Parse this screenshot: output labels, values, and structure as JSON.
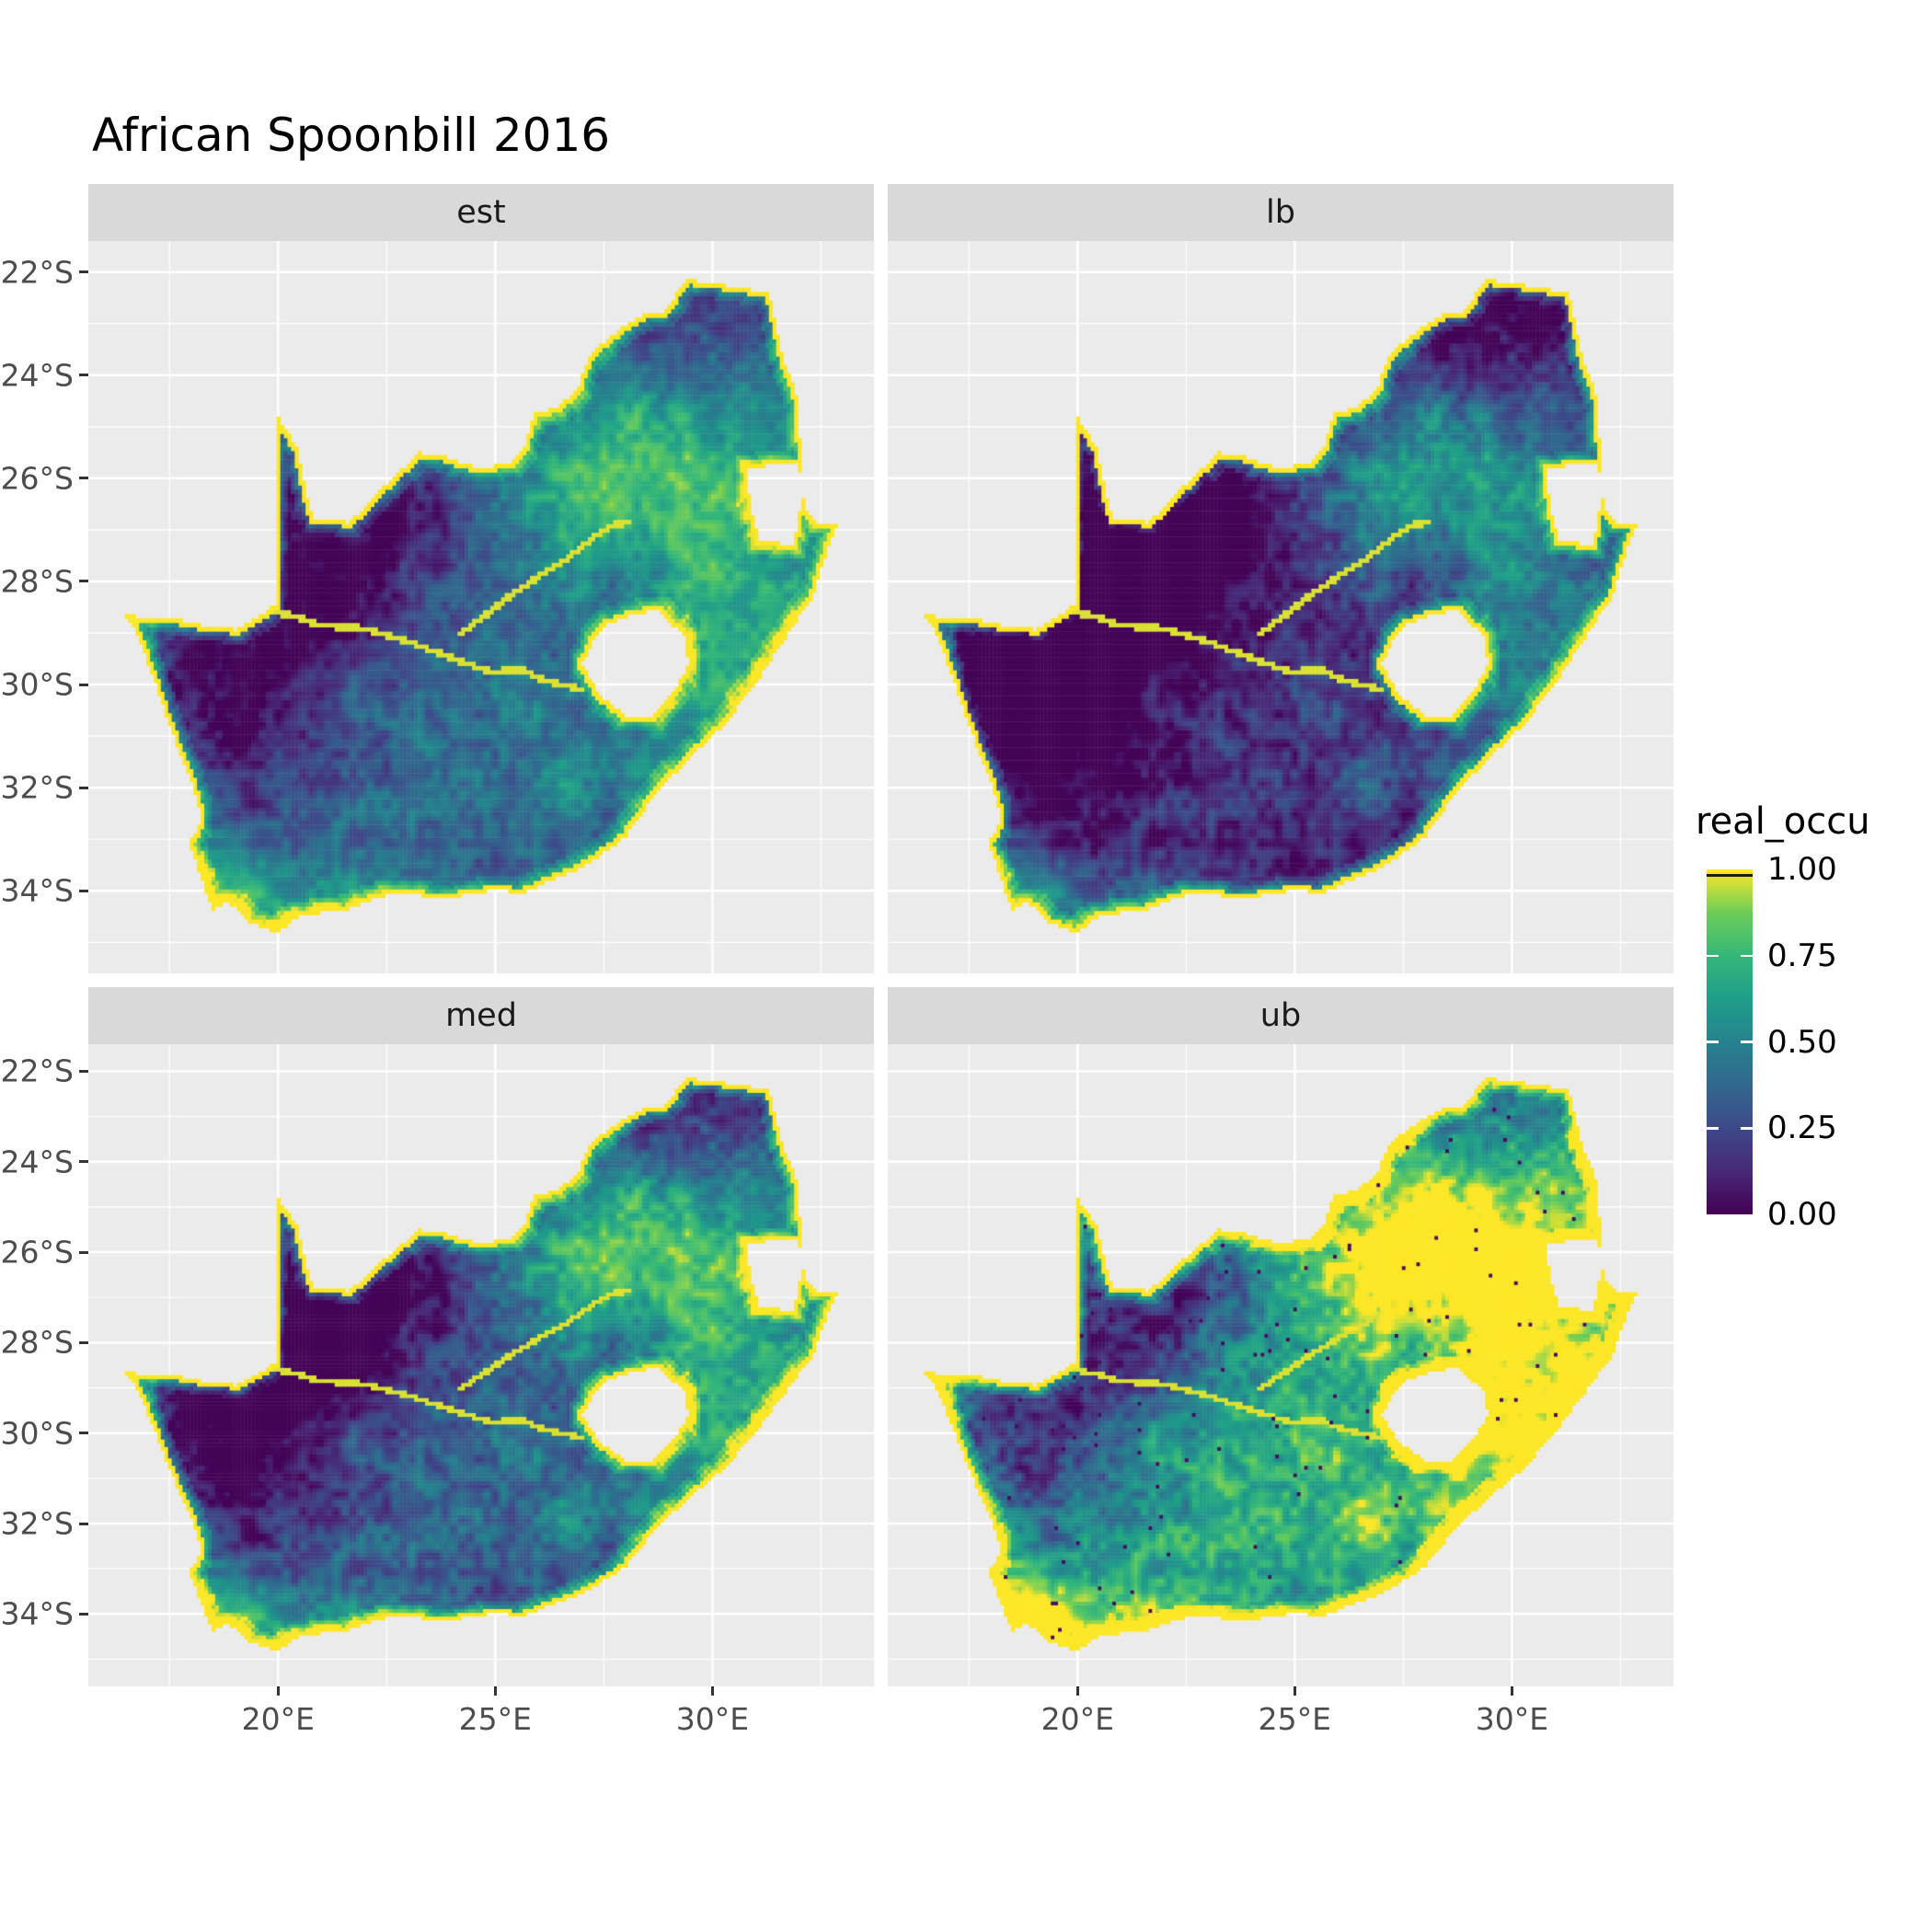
{
  "title": "African Spoonbill 2016",
  "legend": {
    "title": "real_occu",
    "labels": [
      "1.00",
      "0.75",
      "0.50",
      "0.25",
      "0.00"
    ]
  },
  "chart_data": {
    "type": "heatmap",
    "title": "African Spoonbill 2016",
    "variable": "real_occu",
    "region": "South Africa occupancy raster, faceted by estimate type",
    "facet_labels": [
      "est",
      "lb",
      "med",
      "ub"
    ],
    "value_range": [
      0,
      1
    ],
    "legend_breaks": [
      1.0,
      0.75,
      0.5,
      0.25,
      0.0
    ],
    "legend_break_labels": [
      "1.00",
      "0.75",
      "0.50",
      "0.25",
      "0.00"
    ],
    "x_axis": {
      "tick_values": [
        20,
        25,
        30
      ],
      "tick_labels": [
        "20°E",
        "25°E",
        "30°E"
      ],
      "minor_tick_values": [
        17.5,
        22.5,
        27.5,
        32.5
      ],
      "range": [
        15.63,
        33.72
      ]
    },
    "y_axis": {
      "tick_values": [
        -22,
        -24,
        -26,
        -28,
        -30,
        -32,
        -34
      ],
      "tick_labels": [
        "22°S",
        "24°S",
        "26°S",
        "28°S",
        "30°S",
        "32°S",
        "34°S"
      ],
      "minor_tick_values": [
        -23,
        -25,
        -27,
        -29,
        -31,
        -33,
        -35
      ],
      "range": [
        -35.6,
        -21.4
      ]
    },
    "colors": {
      "panel_bg": "#EBEBEB",
      "strip_bg": "#D9D9D9",
      "grid": "#FFFFFF",
      "axis_text": "#4D4D4D",
      "strip_text": "#1A1A1A",
      "title_text": "#000000",
      "tick_mark": "#333333"
    },
    "colormap": "viridis",
    "viridis_stops": [
      {
        "t": 0.0,
        "c": "#440154"
      },
      {
        "t": 0.125,
        "c": "#482878"
      },
      {
        "t": 0.25,
        "c": "#3E4989"
      },
      {
        "t": 0.375,
        "c": "#31688E"
      },
      {
        "t": 0.5,
        "c": "#26828E"
      },
      {
        "t": 0.625,
        "c": "#1F9E89"
      },
      {
        "t": 0.75,
        "c": "#35B779"
      },
      {
        "t": 0.875,
        "c": "#6DCD59"
      },
      {
        "t": 1.0,
        "c": "#FDE725"
      }
    ],
    "facet_transforms": {
      "est": [
        1.0,
        0.0
      ],
      "lb": [
        1.1,
        -0.28
      ],
      "med": [
        1.15,
        -0.1
      ],
      "ub": [
        1.3,
        0.18
      ]
    },
    "grid_resolution_cells_per_degree": 12,
    "region_outline_lonlat": [
      [
        16.45,
        -28.6
      ],
      [
        17.05,
        -28.75
      ],
      [
        17.45,
        -28.68
      ],
      [
        17.95,
        -28.8
      ],
      [
        18.5,
        -28.88
      ],
      [
        19.0,
        -28.93
      ],
      [
        19.45,
        -28.72
      ],
      [
        19.98,
        -28.42
      ],
      [
        19.98,
        -24.77
      ],
      [
        20.45,
        -25.45
      ],
      [
        20.65,
        -26.35
      ],
      [
        20.85,
        -26.8
      ],
      [
        21.65,
        -26.85
      ],
      [
        22.2,
        -26.35
      ],
      [
        22.7,
        -25.95
      ],
      [
        23.25,
        -25.5
      ],
      [
        23.9,
        -25.6
      ],
      [
        24.6,
        -25.8
      ],
      [
        25.35,
        -25.72
      ],
      [
        25.65,
        -25.45
      ],
      [
        25.9,
        -24.75
      ],
      [
        26.45,
        -24.6
      ],
      [
        26.9,
        -24.25
      ],
      [
        27.2,
        -23.55
      ],
      [
        27.75,
        -23.2
      ],
      [
        28.3,
        -22.85
      ],
      [
        28.9,
        -22.75
      ],
      [
        29.4,
        -22.15
      ],
      [
        30.0,
        -22.22
      ],
      [
        30.6,
        -22.3
      ],
      [
        31.3,
        -22.4
      ],
      [
        31.6,
        -23.6
      ],
      [
        31.95,
        -24.4
      ],
      [
        32.0,
        -25.1
      ],
      [
        32.05,
        -25.9
      ],
      [
        32.1,
        -26.5
      ],
      [
        32.35,
        -26.85
      ],
      [
        32.9,
        -26.86
      ],
      [
        32.55,
        -27.6
      ],
      [
        32.3,
        -28.3
      ],
      [
        31.75,
        -29.0
      ],
      [
        31.05,
        -29.9
      ],
      [
        30.3,
        -30.75
      ],
      [
        29.5,
        -31.4
      ],
      [
        28.75,
        -32.05
      ],
      [
        28.0,
        -32.95
      ],
      [
        27.1,
        -33.5
      ],
      [
        26.4,
        -33.75
      ],
      [
        25.65,
        -34.05
      ],
      [
        25.0,
        -33.98
      ],
      [
        24.2,
        -34.1
      ],
      [
        23.4,
        -34.1
      ],
      [
        22.6,
        -34.05
      ],
      [
        22.15,
        -34.18
      ],
      [
        21.4,
        -34.4
      ],
      [
        20.55,
        -34.45
      ],
      [
        20.0,
        -34.82
      ],
      [
        19.35,
        -34.62
      ],
      [
        18.85,
        -34.2
      ],
      [
        18.47,
        -34.36
      ],
      [
        18.3,
        -33.9
      ],
      [
        17.95,
        -33.1
      ],
      [
        18.25,
        -32.6
      ],
      [
        18.0,
        -31.9
      ],
      [
        17.5,
        -30.8
      ],
      [
        17.05,
        -29.7
      ],
      [
        16.75,
        -29.0
      ]
    ],
    "holes_lonlat": {
      "lesotho": [
        [
          27.55,
          -28.85
        ],
        [
          28.2,
          -28.62
        ],
        [
          28.72,
          -28.56
        ],
        [
          29.35,
          -29.05
        ],
        [
          29.45,
          -29.6
        ],
        [
          29.15,
          -30.1
        ],
        [
          28.6,
          -30.6
        ],
        [
          28.05,
          -30.65
        ],
        [
          27.35,
          -30.15
        ],
        [
          27.0,
          -29.6
        ],
        [
          27.3,
          -29.05
        ]
      ],
      "eswatini": [
        [
          30.8,
          -25.78
        ],
        [
          31.95,
          -25.72
        ],
        [
          32.12,
          -26.2
        ],
        [
          31.95,
          -26.8
        ],
        [
          31.9,
          -27.3
        ],
        [
          31.1,
          -27.2
        ],
        [
          30.85,
          -26.45
        ]
      ]
    },
    "rivers_lonlat": [
      [
        [
          17.1,
          -28.7
        ],
        [
          18.0,
          -28.8
        ],
        [
          18.9,
          -28.85
        ],
        [
          19.7,
          -28.55
        ],
        [
          20.3,
          -28.65
        ],
        [
          21.0,
          -28.85
        ],
        [
          21.9,
          -28.9
        ],
        [
          22.8,
          -29.1
        ],
        [
          23.6,
          -29.35
        ],
        [
          24.4,
          -29.6
        ],
        [
          24.9,
          -29.75
        ],
        [
          25.6,
          -29.7
        ],
        [
          26.1,
          -29.9
        ],
        [
          27.0,
          -30.1
        ]
      ],
      [
        [
          24.2,
          -29.0
        ],
        [
          24.7,
          -28.7
        ],
        [
          25.3,
          -28.3
        ],
        [
          26.0,
          -27.9
        ],
        [
          26.6,
          -27.6
        ],
        [
          27.0,
          -27.3
        ],
        [
          27.7,
          -26.9
        ],
        [
          28.1,
          -26.85
        ]
      ]
    ]
  }
}
